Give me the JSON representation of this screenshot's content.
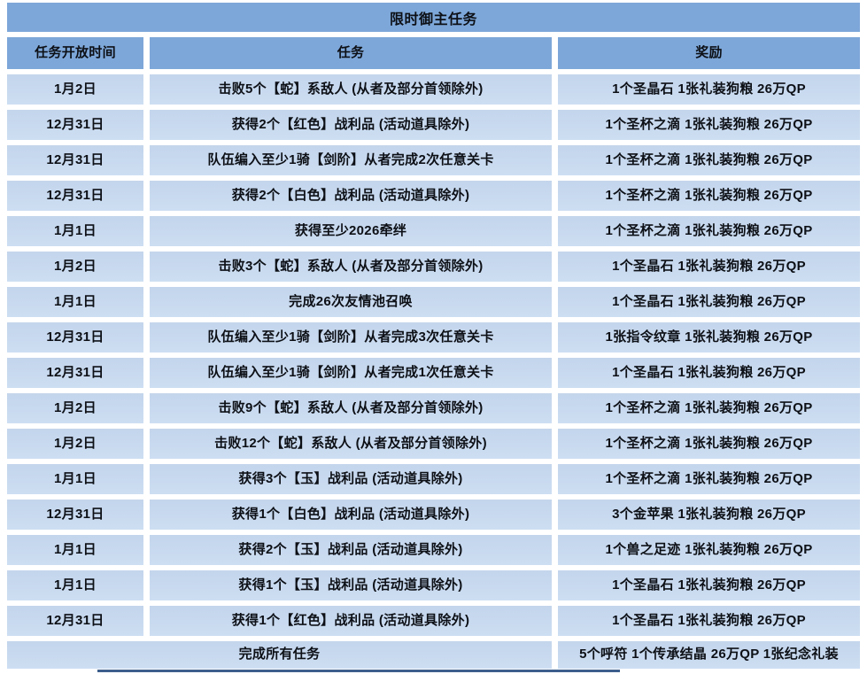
{
  "table": {
    "title": "限时御主任务",
    "columns": [
      "任务开放时间",
      "任务",
      "奖励"
    ],
    "rows": [
      {
        "date": "1月2日",
        "mission": "击败5个【蛇】系敌人 (从者及部分首领除外)",
        "reward": "1个圣晶石 1张礼装狗粮 26万QP"
      },
      {
        "date": "12月31日",
        "mission": "获得2个【红色】战利品 (活动道具除外)",
        "reward": "1个圣杯之滴 1张礼装狗粮 26万QP"
      },
      {
        "date": "12月31日",
        "mission": "队伍编入至少1骑【剑阶】从者完成2次任意关卡",
        "reward": "1个圣杯之滴 1张礼装狗粮 26万QP"
      },
      {
        "date": "12月31日",
        "mission": "获得2个【白色】战利品 (活动道具除外)",
        "reward": "1个圣杯之滴 1张礼装狗粮 26万QP"
      },
      {
        "date": "1月1日",
        "mission": "获得至少2026牵绊",
        "reward": "1个圣杯之滴 1张礼装狗粮 26万QP"
      },
      {
        "date": "1月2日",
        "mission": "击败3个【蛇】系敌人 (从者及部分首领除外)",
        "reward": "1个圣晶石 1张礼装狗粮 26万QP"
      },
      {
        "date": "1月1日",
        "mission": "完成26次友情池召唤",
        "reward": "1个圣晶石 1张礼装狗粮 26万QP"
      },
      {
        "date": "12月31日",
        "mission": "队伍编入至少1骑【剑阶】从者完成3次任意关卡",
        "reward": "1张指令纹章 1张礼装狗粮 26万QP"
      },
      {
        "date": "12月31日",
        "mission": "队伍编入至少1骑【剑阶】从者完成1次任意关卡",
        "reward": "1个圣晶石 1张礼装狗粮 26万QP"
      },
      {
        "date": "1月2日",
        "mission": "击败9个【蛇】系敌人 (从者及部分首领除外)",
        "reward": "1个圣杯之滴 1张礼装狗粮 26万QP"
      },
      {
        "date": "1月2日",
        "mission": "击败12个【蛇】系敌人 (从者及部分首领除外)",
        "reward": "1个圣杯之滴 1张礼装狗粮 26万QP"
      },
      {
        "date": "1月1日",
        "mission": "获得3个【玉】战利品 (活动道具除外)",
        "reward": "1个圣杯之滴 1张礼装狗粮 26万QP"
      },
      {
        "date": "12月31日",
        "mission": "获得1个【白色】战利品 (活动道具除外)",
        "reward": "3个金苹果 1张礼装狗粮 26万QP"
      },
      {
        "date": "1月1日",
        "mission": "获得2个【玉】战利品 (活动道具除外)",
        "reward": "1个兽之足迹 1张礼装狗粮 26万QP"
      },
      {
        "date": "1月1日",
        "mission": "获得1个【玉】战利品 (活动道具除外)",
        "reward": "1个圣晶石 1张礼装狗粮 26万QP"
      },
      {
        "date": "12月31日",
        "mission": "获得1个【红色】战利品 (活动道具除外)",
        "reward": "1个圣晶石 1张礼装狗粮 26万QP"
      }
    ],
    "footer": {
      "mission": "完成所有任务",
      "reward": "5个呼符 1个传承结晶 26万QP 1张纪念礼装"
    }
  },
  "colors": {
    "header_bg": "#7da7d9",
    "row_bg_top": "#c3d5ec",
    "row_bg": "#cddef2",
    "text": "#0d1016",
    "bottom_line": "#3d5e8c"
  }
}
